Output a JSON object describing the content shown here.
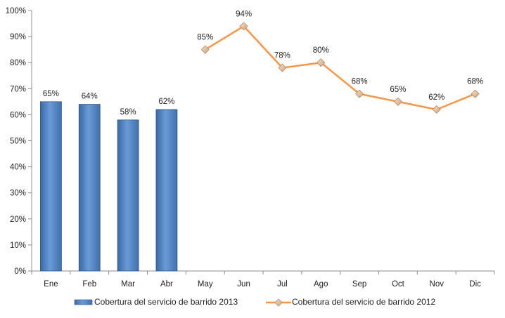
{
  "chart_data": {
    "type": "bar+line",
    "categories": [
      "Ene",
      "Feb",
      "Mar",
      "Abr",
      "May",
      "Jun",
      "Jul",
      "Ago",
      "Sep",
      "Oct",
      "Nov",
      "Dic"
    ],
    "ylim": [
      0,
      100
    ],
    "yticks": [
      "0%",
      "10%",
      "20%",
      "30%",
      "40%",
      "50%",
      "60%",
      "70%",
      "80%",
      "90%",
      "100%"
    ],
    "grid": false,
    "legend_position": "bottom",
    "series": [
      {
        "name": "Cobertura del servicio de barrido 2013",
        "type": "bar",
        "color": "#4F81BD",
        "values": [
          65,
          64,
          58,
          62,
          null,
          null,
          null,
          null,
          null,
          null,
          null,
          null
        ],
        "labels": [
          "65%",
          "64%",
          "58%",
          "62%",
          "",
          "",
          "",
          "",
          "",
          "",
          "",
          ""
        ]
      },
      {
        "name": "Cobertura del servicio de barrido 2012",
        "type": "line",
        "color": "#F79646",
        "values": [
          null,
          null,
          null,
          null,
          85,
          94,
          78,
          80,
          68,
          65,
          62,
          68
        ],
        "labels": [
          "",
          "",
          "",
          "",
          "85%",
          "94%",
          "78%",
          "80%",
          "68%",
          "65%",
          "62%",
          "68%"
        ]
      }
    ]
  }
}
